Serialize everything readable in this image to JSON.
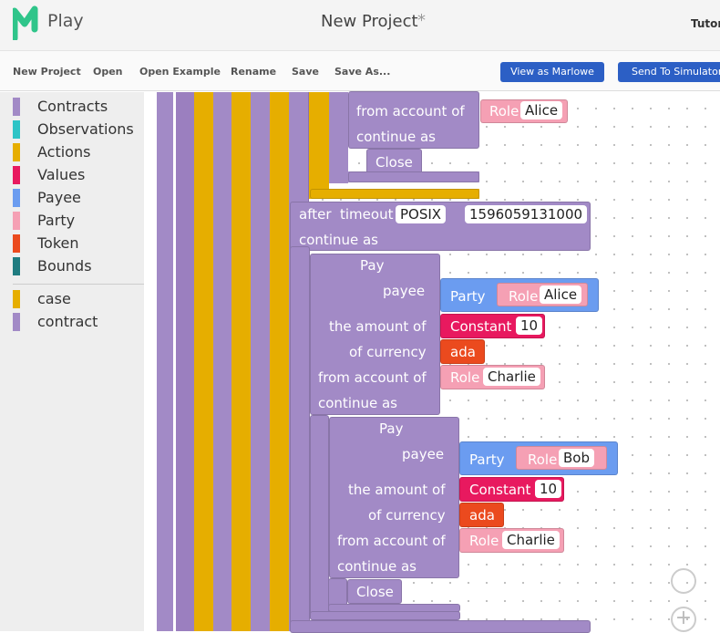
{
  "header": {
    "logo": "Play",
    "title": "New Project",
    "modified": "*",
    "tutorial": "Tutori"
  },
  "toolbar": {
    "buttons": [
      "New Project",
      "Open",
      "Open Example",
      "Rename",
      "Save",
      "Save As..."
    ],
    "view": "View as Marlowe",
    "send": "Send To Simulator"
  },
  "sidebar": {
    "categories": [
      {
        "label": "Contracts",
        "color": "#a28ac6"
      },
      {
        "label": "Observations",
        "color": "#2ec4c6"
      },
      {
        "label": "Actions",
        "color": "#e6ae00"
      },
      {
        "label": "Values",
        "color": "#e8195f"
      },
      {
        "label": "Payee",
        "color": "#6b9cf0"
      },
      {
        "label": "Party",
        "color": "#f5a0b4"
      },
      {
        "label": "Token",
        "color": "#eb4a1e"
      },
      {
        "label": "Bounds",
        "color": "#1f7c80"
      }
    ],
    "variables": [
      {
        "label": "case",
        "color": "#e6ae00"
      },
      {
        "label": "contract",
        "color": "#a28ac6"
      }
    ]
  },
  "workspace": {
    "top_block": {
      "from_account": "from account of",
      "role": "Role",
      "party": "Alice",
      "continue": "continue as",
      "close": "Close"
    },
    "timeout": {
      "after": "after",
      "label": "timeout",
      "kind": "POSIX",
      "value": "1596059131000",
      "continue": "continue as"
    },
    "pay_blocks": [
      {
        "pay": "Pay",
        "payee": "payee",
        "party": "Party",
        "role": "Role",
        "payee_name": "Alice",
        "amount": "the amount of",
        "constant": "Constant",
        "number": "10",
        "currency": "of currency",
        "token": "ada",
        "from_account": "from account of",
        "from_role": "Role",
        "from_name": "Charlie",
        "continue": "continue as"
      },
      {
        "pay": "Pay",
        "payee": "payee",
        "party": "Party",
        "role": "Role",
        "payee_name": "Bob",
        "amount": "the amount of",
        "constant": "Constant",
        "number": "10",
        "currency": "of currency",
        "token": "ada",
        "from_account": "from account of",
        "from_role": "Role",
        "from_name": "Charlie",
        "continue": "continue as",
        "close": "Close"
      }
    ]
  }
}
